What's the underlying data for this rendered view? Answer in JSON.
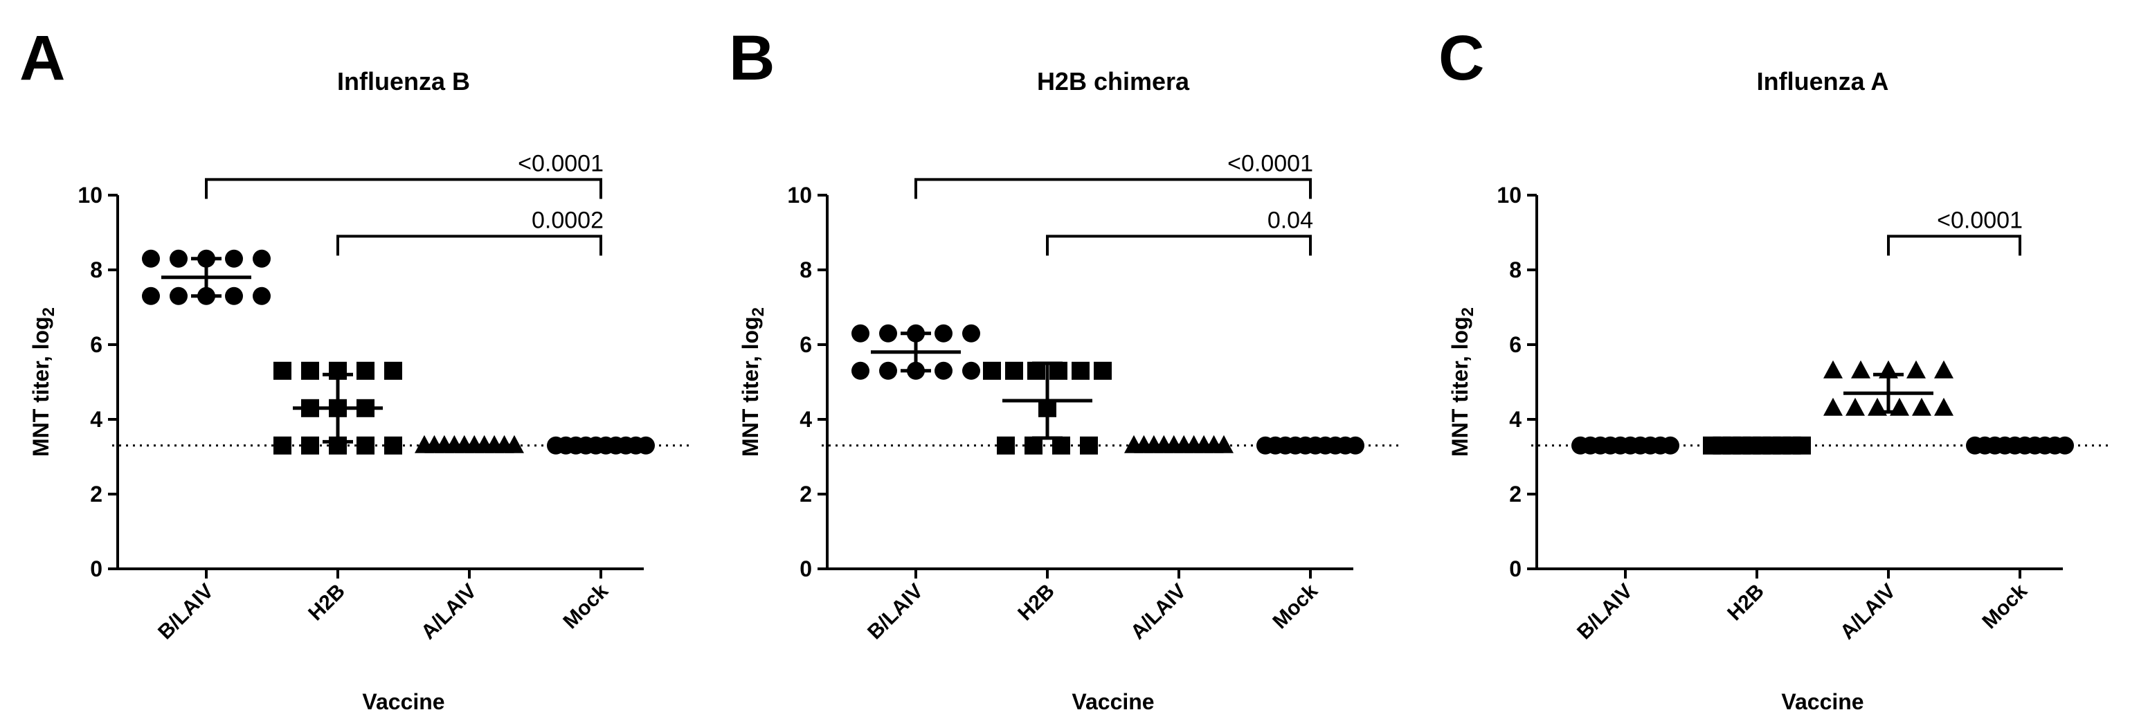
{
  "chart_data": [
    {
      "type": "dot",
      "panel": "A",
      "title": "Influenza B",
      "ylabel": "MNT titer, log",
      "ylabel_subscript": "2",
      "xlabel": "Vaccine",
      "categories": [
        "B/LAIV",
        "H2B",
        "A/LAIV",
        "Mock"
      ],
      "ylim": [
        0,
        10
      ],
      "yticks": [
        0,
        2,
        4,
        6,
        8,
        10
      ],
      "reference_line": 3.3,
      "color": "#000000",
      "groups": [
        {
          "marker": "circle",
          "values": [
            8.3,
            8.3,
            8.3,
            8.3,
            8.3,
            7.3,
            7.3,
            7.3,
            7.3,
            7.3
          ],
          "mean": 7.8,
          "sd": 0.5
        },
        {
          "marker": "square",
          "values": [
            5.3,
            5.3,
            5.3,
            5.3,
            5.3,
            4.3,
            4.3,
            4.3,
            3.3,
            3.3,
            3.3,
            3.3,
            3.3
          ],
          "mean": 4.3,
          "sd": 0.9
        },
        {
          "marker": "triangle",
          "values": [
            3.3,
            3.3,
            3.3,
            3.3,
            3.3,
            3.3,
            3.3,
            3.3,
            3.3,
            3.3
          ],
          "mean": 3.3,
          "sd": 0
        },
        {
          "marker": "circle",
          "values": [
            3.3,
            3.3,
            3.3,
            3.3,
            3.3,
            3.3,
            3.3,
            3.3,
            3.3,
            3.3
          ],
          "mean": 3.3,
          "sd": 0
        }
      ],
      "comparisons": [
        {
          "between": [
            "B/LAIV",
            "Mock"
          ],
          "label": "<0.0001"
        },
        {
          "between": [
            "H2B",
            "Mock"
          ],
          "label": "0.0002"
        }
      ]
    },
    {
      "type": "dot",
      "panel": "B",
      "title": "H2B chimera",
      "ylabel": "MNT titer, log",
      "ylabel_subscript": "2",
      "xlabel": "Vaccine",
      "categories": [
        "B/LAIV",
        "H2B",
        "A/LAIV",
        "Mock"
      ],
      "ylim": [
        0,
        10
      ],
      "yticks": [
        0,
        2,
        4,
        6,
        8,
        10
      ],
      "reference_line": 3.3,
      "color": "#000000",
      "groups": [
        {
          "marker": "circle",
          "values": [
            6.3,
            6.3,
            6.3,
            6.3,
            6.3,
            5.3,
            5.3,
            5.3,
            5.3,
            5.3
          ],
          "mean": 5.8,
          "sd": 0.5
        },
        {
          "marker": "square",
          "values": [
            5.3,
            5.3,
            5.3,
            5.3,
            5.3,
            5.3,
            4.3,
            3.3,
            3.3,
            3.3,
            3.3
          ],
          "mean": 4.5,
          "sd": 1.0
        },
        {
          "marker": "triangle",
          "values": [
            3.3,
            3.3,
            3.3,
            3.3,
            3.3,
            3.3,
            3.3,
            3.3,
            3.3,
            3.3
          ],
          "mean": 3.3,
          "sd": 0
        },
        {
          "marker": "circle",
          "values": [
            3.3,
            3.3,
            3.3,
            3.3,
            3.3,
            3.3,
            3.3,
            3.3,
            3.3,
            3.3
          ],
          "mean": 3.3,
          "sd": 0
        }
      ],
      "comparisons": [
        {
          "between": [
            "B/LAIV",
            "Mock"
          ],
          "label": "<0.0001"
        },
        {
          "between": [
            "H2B",
            "Mock"
          ],
          "label": "0.04"
        }
      ]
    },
    {
      "type": "dot",
      "panel": "C",
      "title": "Influenza A",
      "ylabel": "MNT titer, log",
      "ylabel_subscript": "2",
      "xlabel": "Vaccine",
      "categories": [
        "B/LAIV",
        "H2B",
        "A/LAIV",
        "Mock"
      ],
      "ylim": [
        0,
        10
      ],
      "yticks": [
        0,
        2,
        4,
        6,
        8,
        10
      ],
      "reference_line": 3.3,
      "color": "#000000",
      "groups": [
        {
          "marker": "circle",
          "values": [
            3.3,
            3.3,
            3.3,
            3.3,
            3.3,
            3.3,
            3.3,
            3.3,
            3.3,
            3.3
          ],
          "mean": 3.3,
          "sd": 0
        },
        {
          "marker": "square",
          "values": [
            3.3,
            3.3,
            3.3,
            3.3,
            3.3,
            3.3,
            3.3,
            3.3,
            3.3,
            3.3
          ],
          "mean": 3.3,
          "sd": 0
        },
        {
          "marker": "triangle",
          "values": [
            5.3,
            5.3,
            5.3,
            5.3,
            5.3,
            4.3,
            4.3,
            4.3,
            4.3,
            4.3,
            4.3
          ],
          "mean": 4.7,
          "sd": 0.5
        },
        {
          "marker": "circle",
          "values": [
            3.3,
            3.3,
            3.3,
            3.3,
            3.3,
            3.3,
            3.3,
            3.3,
            3.3,
            3.3
          ],
          "mean": 3.3,
          "sd": 0
        }
      ],
      "comparisons": [
        {
          "between": [
            "A/LAIV",
            "Mock"
          ],
          "label": "<0.0001"
        }
      ]
    }
  ]
}
